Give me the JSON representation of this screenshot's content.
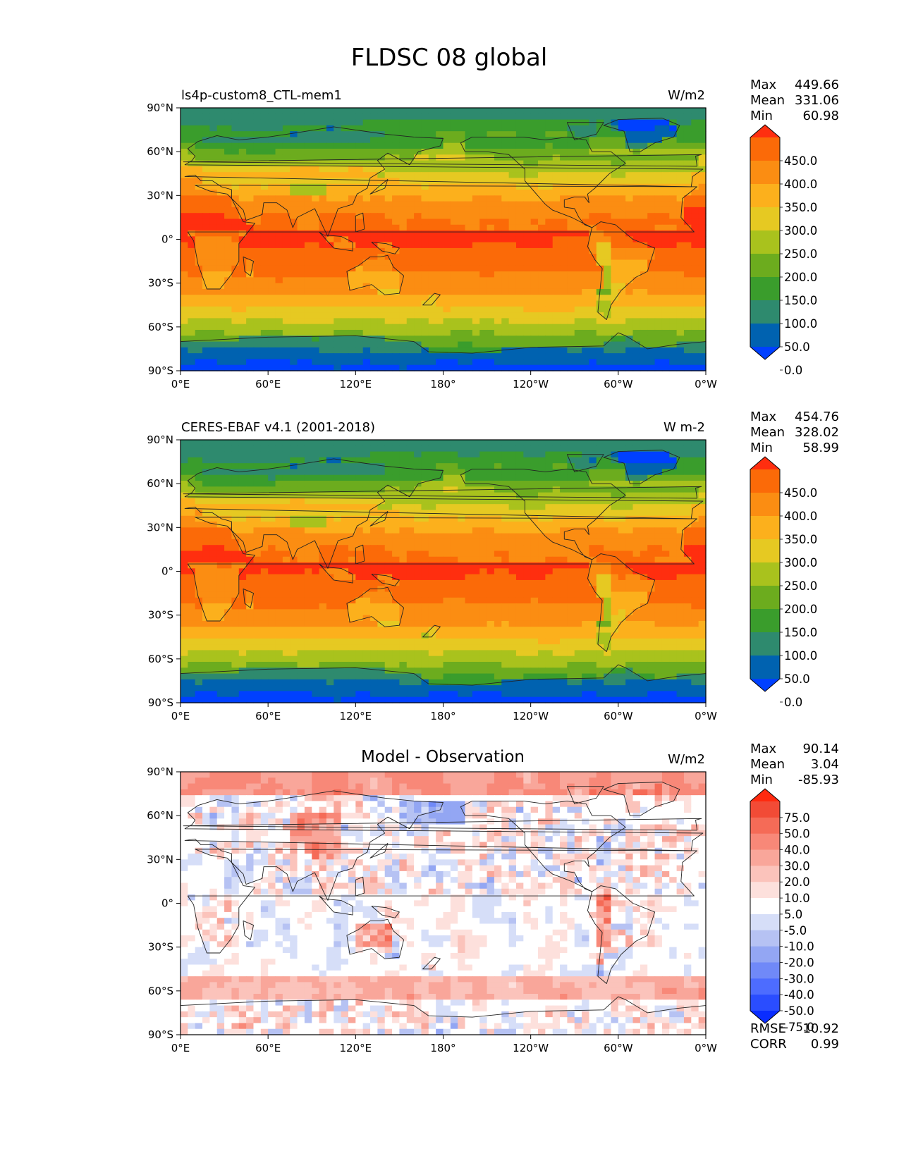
{
  "title": "FLDSC 08 global",
  "x_ticks": [
    "0°E",
    "60°E",
    "120°E",
    "180°",
    "120°W",
    "60°W",
    "0°W"
  ],
  "y_ticks": [
    "90°N",
    "60°N",
    "30°N",
    "0°",
    "30°S",
    "60°S",
    "90°S"
  ],
  "palettes": {
    "flux": [
      "#0040ff",
      "#0062b0",
      "#2e8a6e",
      "#3a9d2c",
      "#6cac1e",
      "#a9c21d",
      "#e6c922",
      "#fcb01c",
      "#fb8d12",
      "#fb6a08",
      "#ff2e0f"
    ],
    "diff": [
      "#0a2dff",
      "#2a4dff",
      "#4d6cff",
      "#7089f8",
      "#93a6f3",
      "#b6c2f3",
      "#d6def8",
      "#ffffff",
      "#fde0dc",
      "#fbc3bb",
      "#f9a69a",
      "#f88878",
      "#f56b57",
      "#f24b36",
      "#ff2a0f"
    ]
  },
  "panels": [
    {
      "title_left": "ls4p-custom8_CTL-mem1",
      "title_center": "",
      "units": "W/m2",
      "stats": [
        {
          "label": "Max",
          "value": "449.66"
        },
        {
          "label": "Mean",
          "value": "331.06"
        },
        {
          "label": "Min",
          "value": "60.98"
        }
      ],
      "colorbar_labels": [
        "450.0",
        "400.0",
        "350.0",
        "300.0",
        "250.0",
        "200.0",
        "150.0",
        "100.0",
        "50.0",
        "0.0"
      ],
      "palette": "flux",
      "bias": 0
    },
    {
      "title_left": "CERES-EBAF v4.1 (2001-2018)",
      "title_center": "",
      "units": "W m-2",
      "stats": [
        {
          "label": "Max",
          "value": "454.76"
        },
        {
          "label": "Mean",
          "value": "328.02"
        },
        {
          "label": "Min",
          "value": "58.99"
        }
      ],
      "colorbar_labels": [
        "450.0",
        "400.0",
        "350.0",
        "300.0",
        "250.0",
        "200.0",
        "150.0",
        "100.0",
        "50.0",
        "0.0"
      ],
      "palette": "flux",
      "bias": -3
    },
    {
      "title_left": "",
      "title_center": "Model - Observation",
      "units": "W/m2",
      "stats": [
        {
          "label": "Max",
          "value": "90.14"
        },
        {
          "label": "Mean",
          "value": "3.04"
        },
        {
          "label": "Min",
          "value": "-85.93"
        }
      ],
      "colorbar_labels": [
        "75.0",
        "50.0",
        "40.0",
        "30.0",
        "20.0",
        "10.0",
        "5.0",
        "-5.0",
        "-10.0",
        "-20.0",
        "-30.0",
        "-40.0",
        "-50.0",
        "-75.0"
      ],
      "palette": "diff",
      "extra_stats": [
        {
          "label": "RMSE",
          "value": "10.92"
        },
        {
          "label": "CORR",
          "value": "0.99"
        }
      ]
    }
  ],
  "chart_data": {
    "type": "heatmap",
    "projection": "plate carree (0° to 360°, central longitude 180°)",
    "variable": "FLDSC",
    "month": "08",
    "extent": {
      "lon": [
        0,
        360
      ],
      "lat": [
        -90,
        90
      ]
    },
    "panels": [
      {
        "name": "ls4p-custom8_CTL-mem1",
        "units": "W/m2",
        "max": 449.66,
        "mean": 331.06,
        "min": 60.98,
        "levels": [
          0,
          50,
          100,
          150,
          200,
          250,
          300,
          350,
          400,
          450
        ],
        "extend": "both"
      },
      {
        "name": "CERES-EBAF v4.1 (2001-2018)",
        "units": "W m-2",
        "max": 454.76,
        "mean": 328.02,
        "min": 58.99,
        "levels": [
          0,
          50,
          100,
          150,
          200,
          250,
          300,
          350,
          400,
          450
        ],
        "extend": "both"
      },
      {
        "name": "Model - Observation",
        "units": "W/m2",
        "max": 90.14,
        "mean": 3.04,
        "min": -85.93,
        "levels": [
          -75,
          -50,
          -40,
          -30,
          -20,
          -10,
          -5,
          5,
          10,
          20,
          30,
          40,
          50,
          75
        ],
        "extend": "both",
        "rmse": 10.92,
        "corr": 0.99
      }
    ]
  }
}
